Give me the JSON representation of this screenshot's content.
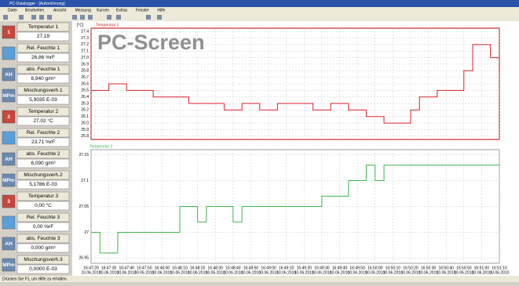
{
  "window": {
    "title": "PC-Datalogger - [Aufzeichnung]",
    "menu": [
      "Datei",
      "Bearbeiten",
      "Ansicht",
      "Messung",
      "Kurven",
      "Extras",
      "Fenster",
      "Hilfe"
    ],
    "overlay": "PC-Screen",
    "status": "Drücken Sie F1, um Hilfe zu erhalten."
  },
  "sensors": [
    {
      "icon": "1",
      "label": "Temperatur 1",
      "value": "27,19"
    },
    {
      "icon": "",
      "label": "Rel. Feuchte 1",
      "value": "26,86 %rF"
    },
    {
      "icon": "AH",
      "label": "abs. Feuchte 1",
      "value": "6,940 g/m³"
    },
    {
      "icon": "MPm",
      "label": "Mischungsverh.1",
      "value": "5,9035 E-03"
    },
    {
      "icon": "2",
      "label": "Temperatur 2",
      "value": "27,02 °C"
    },
    {
      "icon": "",
      "label": "Rel. Feuchte 2",
      "value": "23,71 %rF"
    },
    {
      "icon": "AH",
      "label": "abs. Feuchte 2",
      "value": "6,090 g/m³"
    },
    {
      "icon": "MPm",
      "label": "Mischungsverh.2",
      "value": "5,1786 E-03"
    },
    {
      "icon": "3",
      "label": "Temperatur 3",
      "value": "0,00 °C"
    },
    {
      "icon": "",
      "label": "Rel. Feuchte 3",
      "value": "0,00 %rF"
    },
    {
      "icon": "AH",
      "label": "abs. Feuchte 3",
      "value": "0,000 g/m³"
    },
    {
      "icon": "MPm",
      "label": "Mischungsverh.3",
      "value": "0,0000 E-03"
    }
  ],
  "chart_data": [
    {
      "type": "line",
      "unit": "[°C]",
      "categories": [
        "16:47:20",
        null,
        "16:47:30",
        null,
        "16:47:40",
        null,
        "16:47:50",
        null,
        "16:48:00",
        null,
        "16:48:10",
        null,
        "16:48:20",
        null,
        "16:48:30",
        null,
        "16:48:40",
        null,
        "16:48:50",
        null,
        "16:49:00",
        null,
        "16:49:10",
        null,
        "16:49:20",
        null,
        "16:49:30",
        null,
        "16:49:40",
        null,
        "16:49:50",
        null,
        "16:50:00",
        null,
        "16:50:10",
        null,
        "16:50:20",
        null,
        "16:50:30",
        null,
        "16:50:40",
        null,
        "16:50:50",
        null,
        "16:51:00",
        null,
        "16:51:10"
      ],
      "date": "10.06.2010",
      "series": [
        {
          "name": "Temperatur 1",
          "color": "#d8202a",
          "values": [
            26.5,
            26.5,
            26.6,
            26.6,
            26.5,
            26.5,
            26.5,
            26.4,
            26.4,
            26.4,
            26.4,
            26.3,
            26.3,
            26.3,
            26.3,
            26.2,
            26.2,
            26.3,
            26.3,
            26.2,
            26.2,
            26.3,
            26.3,
            26.3,
            26.3,
            26.2,
            26.2,
            26.3,
            26.3,
            26.2,
            26.2,
            26.1,
            26.1,
            26.0,
            26.0,
            26.0,
            26.2,
            26.4,
            26.4,
            26.5,
            26.5,
            26.5,
            26.8,
            27.2,
            27.2,
            27.0,
            26.8
          ]
        }
      ],
      "ylim": [
        25.75,
        27.45
      ],
      "yticks": [
        25.8,
        25.9,
        {
          "value": 26,
          "label": "26.0"
        },
        26.1,
        26.2,
        26.3,
        26.4,
        26.5,
        26.6,
        26.7,
        26.8,
        26.9,
        {
          "value": 27,
          "label": "27.0"
        },
        27.1,
        27.2,
        27.3,
        27.4
      ],
      "grid": true,
      "frame_color": "#c0282c"
    },
    {
      "type": "line",
      "categories": [
        "16:47:20",
        null,
        "16:47:30",
        null,
        "16:47:40",
        null,
        "16:47:50",
        null,
        "16:48:00",
        null,
        "16:48:10",
        null,
        "16:48:20",
        null,
        "16:48:30",
        null,
        "16:48:40",
        null,
        "16:48:50",
        null,
        "16:49:00",
        null,
        "16:49:10",
        null,
        "16:49:20",
        null,
        "16:49:30",
        null,
        "16:49:40",
        null,
        "16:49:50",
        null,
        "16:50:00",
        null,
        "16:50:10",
        null,
        "16:50:20",
        null,
        "16:50:30",
        null,
        "16:50:40",
        null,
        "16:50:50",
        null,
        "16:51:00",
        null,
        "16:51:10"
      ],
      "date": "10.06.2010",
      "series": [
        {
          "name": "Temperatur 2",
          "color": "#3cb44b",
          "values": [
            27.0,
            26.96,
            26.96,
            27.0,
            27.0,
            27.0,
            27.0,
            27.0,
            27.0,
            27.0,
            27.05,
            27.05,
            27.02,
            27.05,
            27.05,
            27.05,
            27.02,
            27.05,
            27.05,
            27.05,
            27.05,
            27.05,
            27.05,
            27.05,
            27.05,
            27.05,
            27.07,
            27.07,
            27.07,
            27.1,
            27.1,
            27.13,
            27.1,
            27.13,
            27.13,
            27.13,
            27.13,
            27.13,
            27.13,
            27.13,
            27.13,
            27.13,
            27.13,
            27.13,
            27.13,
            27.13,
            27.13
          ]
        }
      ],
      "ylim": [
        26.94,
        27.16
      ],
      "yticks": [
        26.95,
        27,
        27.05,
        27.1,
        27.15
      ],
      "grid": true,
      "frame_color": "#888888"
    }
  ]
}
